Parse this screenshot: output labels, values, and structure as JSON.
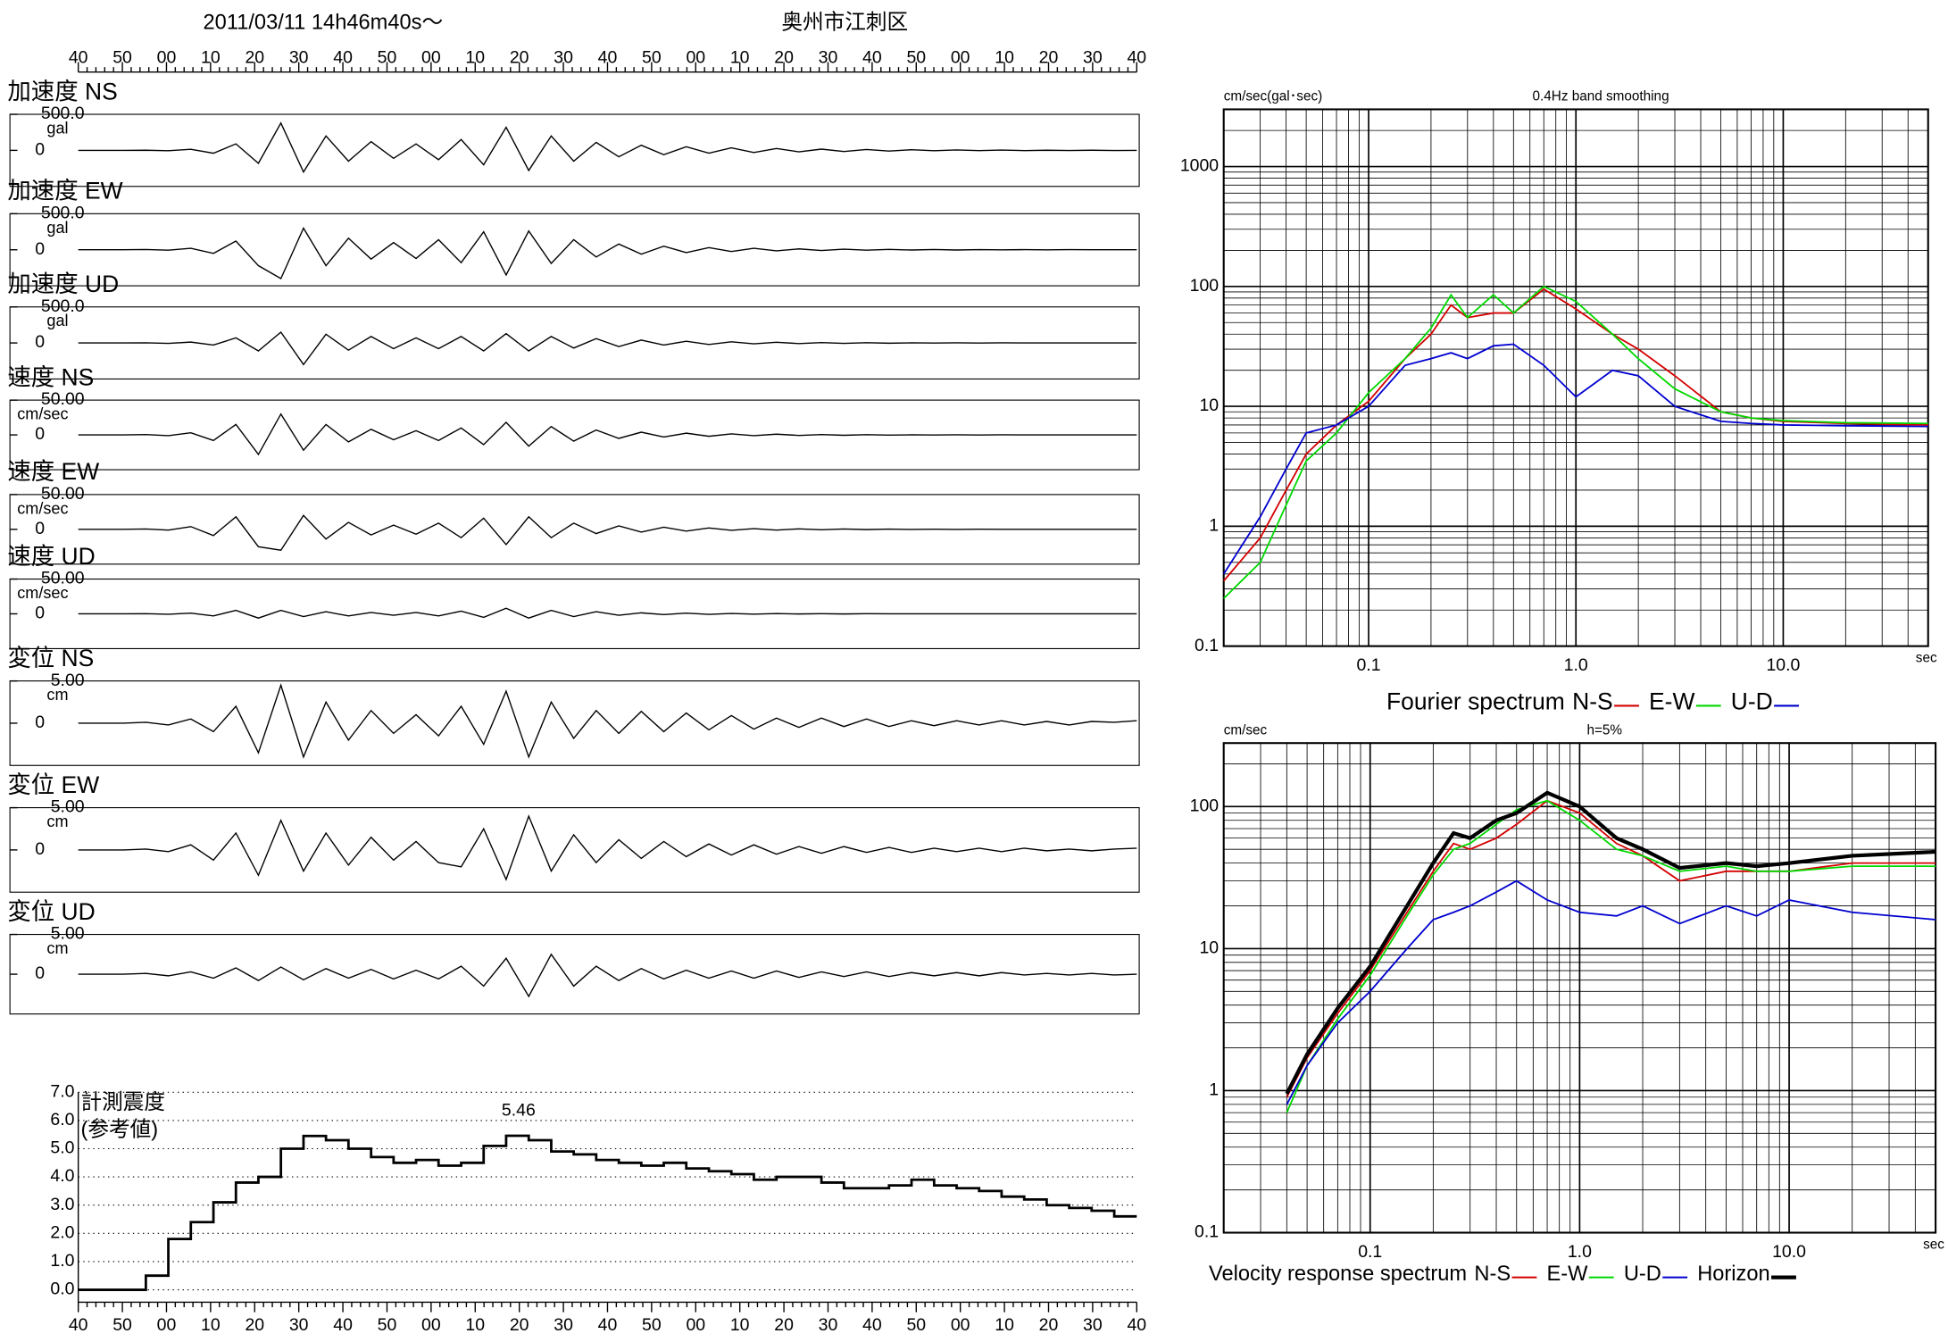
{
  "chart_data": [
    {
      "type": "waveform",
      "title": "2011/03/11  14h46m40s〜",
      "location": "奥州市江刺区",
      "time_labels": [
        "40",
        "50",
        "00",
        "10",
        "20",
        "30",
        "40",
        "50",
        "00",
        "10",
        "20",
        "30",
        "40",
        "50",
        "00",
        "10",
        "20",
        "30",
        "40",
        "50",
        "00",
        "10",
        "20",
        "30",
        "40"
      ],
      "panels": [
        {
          "label": "加速度 NS",
          "unit": "gal",
          "ylim": [
            -500,
            500
          ],
          "yticks": [
            {
              "value": 500,
              "label": "500.0"
            },
            0
          ],
          "values": [
            0,
            0,
            0,
            2,
            -5,
            15,
            -40,
            90,
            -180,
            380,
            -300,
            200,
            -150,
            120,
            -110,
            90,
            -130,
            150,
            -200,
            320,
            -280,
            200,
            -150,
            110,
            -90,
            70,
            -60,
            50,
            -40,
            35,
            -30,
            25,
            -20,
            18,
            -15,
            12,
            -10,
            8,
            -6,
            5,
            -4,
            3,
            -3,
            2,
            -2,
            1,
            -1,
            0
          ]
        },
        {
          "label": "加速度 EW",
          "unit": "gal",
          "ylim": [
            -500,
            500
          ],
          "yticks": [
            {
              "value": 500,
              "label": "500.0"
            },
            0
          ],
          "values": [
            0,
            0,
            0,
            3,
            -6,
            20,
            -50,
            120,
            -220,
            -400,
            300,
            -220,
            160,
            -130,
            100,
            -120,
            140,
            -180,
            250,
            -350,
            260,
            -190,
            140,
            -100,
            80,
            -60,
            50,
            -40,
            30,
            -25,
            20,
            -15,
            12,
            -10,
            8,
            -6,
            5,
            -4,
            3,
            -3,
            2,
            -2,
            1,
            -1,
            1,
            0,
            0,
            0
          ]
        },
        {
          "label": "加速度 UD",
          "unit": "gal",
          "ylim": [
            -500,
            500
          ],
          "yticks": [
            {
              "value": 500,
              "label": "500.0"
            },
            0
          ],
          "values": [
            0,
            0,
            0,
            2,
            -5,
            12,
            -30,
            70,
            -110,
            150,
            -300,
            120,
            -100,
            90,
            -80,
            70,
            -80,
            90,
            -110,
            130,
            -110,
            90,
            -70,
            60,
            -50,
            40,
            -30,
            25,
            -20,
            15,
            -12,
            10,
            -8,
            6,
            -5,
            4,
            -3,
            2,
            -2,
            1,
            -1,
            1,
            0,
            0,
            0,
            0,
            0,
            0
          ]
        },
        {
          "label": "速度 NS",
          "unit": "cm/sec",
          "ylim": [
            -50,
            50
          ],
          "yticks": [
            {
              "value": 50,
              "label": "50.00"
            },
            0
          ],
          "values": [
            0,
            0,
            0,
            0.5,
            -1,
            3,
            -8,
            15,
            -28,
            30,
            -22,
            15,
            -10,
            8,
            -7,
            6,
            -8,
            10,
            -14,
            18,
            -16,
            12,
            -9,
            7,
            -5,
            4,
            -3,
            2.5,
            -2,
            1.5,
            -1,
            1,
            -0.8,
            0.6,
            -0.5,
            0.4,
            -0.3,
            0.2,
            -0.2,
            0.1,
            -0.1,
            0.1,
            0,
            0,
            0,
            0,
            0,
            0
          ]
        },
        {
          "label": "速度 EW",
          "unit": "cm/sec",
          "ylim": [
            -50,
            50
          ],
          "yticks": [
            {
              "value": 50,
              "label": "50.00"
            },
            0
          ],
          "values": [
            0,
            0,
            0,
            0.5,
            -1,
            4,
            -9,
            18,
            -25,
            -30,
            20,
            -14,
            10,
            -8,
            6,
            -7,
            9,
            -12,
            16,
            -22,
            18,
            -12,
            9,
            -6,
            5,
            -4,
            3,
            -2.5,
            2,
            -1.5,
            1,
            -1,
            0.8,
            -0.6,
            0.5,
            -0.4,
            0.3,
            -0.2,
            0.2,
            -0.1,
            0.1,
            0,
            0,
            0,
            0,
            0,
            0,
            0
          ]
        },
        {
          "label": "速度 UD",
          "unit": "cm/sec",
          "ylim": [
            -50,
            50
          ],
          "yticks": [
            {
              "value": 50,
              "label": "50.00"
            },
            0
          ],
          "values": [
            0,
            0,
            0,
            0.2,
            -0.5,
            1,
            -3,
            5,
            -6,
            5,
            -4,
            3,
            -3,
            2,
            -2,
            2,
            -3,
            4,
            -5,
            8,
            -6,
            5,
            -4,
            3,
            -2,
            1.5,
            -1,
            1,
            -0.8,
            0.5,
            -0.4,
            0.3,
            -0.2,
            0.2,
            -0.1,
            0.1,
            0,
            0,
            0,
            0,
            0,
            0,
            0,
            0,
            0,
            0,
            0,
            0
          ]
        },
        {
          "label": "変位 NS",
          "unit": "cm",
          "ylim": [
            -5,
            5
          ],
          "yticks": [
            {
              "value": 5,
              "label": "5.00"
            },
            0
          ],
          "values": [
            0,
            0,
            0,
            0.1,
            -0.2,
            0.5,
            -1,
            2,
            -3.5,
            4.5,
            -4,
            2.5,
            -2,
            1.5,
            -1.2,
            1,
            -1.5,
            2,
            -2.5,
            3.8,
            -4,
            2.5,
            -1.8,
            1.5,
            -1.2,
            1.4,
            -1,
            1.2,
            -0.8,
            0.9,
            -0.7,
            0.6,
            -0.5,
            0.6,
            -0.4,
            0.5,
            -0.4,
            0.3,
            -0.3,
            0.3,
            -0.2,
            0.3,
            -0.2,
            0.2,
            -0.2,
            0.2,
            0.1,
            0.3
          ]
        },
        {
          "label": "変位 EW",
          "unit": "cm",
          "ylim": [
            -5,
            5
          ],
          "yticks": [
            {
              "value": 5,
              "label": "5.00"
            },
            0
          ],
          "values": [
            0,
            0,
            0,
            0.1,
            -0.2,
            0.6,
            -1.2,
            2,
            -3,
            3.5,
            -2.5,
            2,
            -1.8,
            1.5,
            -1.2,
            1,
            -1.5,
            -2,
            2.5,
            -3.5,
            4,
            -2.5,
            1.8,
            -1.5,
            1.2,
            -1,
            1,
            -0.8,
            0.7,
            -0.6,
            0.6,
            -0.5,
            0.4,
            -0.4,
            0.4,
            -0.3,
            0.3,
            -0.3,
            0.2,
            -0.2,
            0.2,
            -0.2,
            0.2,
            -0.1,
            0.1,
            -0.1,
            0.1,
            0.2
          ]
        },
        {
          "label": "変位 UD",
          "unit": "cm",
          "ylim": [
            -5,
            5
          ],
          "yticks": [
            {
              "value": 5,
              "label": "5.00"
            },
            0
          ],
          "values": [
            0,
            0,
            0,
            0.1,
            -0.2,
            0.3,
            -0.5,
            0.8,
            -0.8,
            0.9,
            -0.7,
            0.7,
            -0.5,
            0.6,
            -0.6,
            0.5,
            -0.6,
            1,
            -1.5,
            2,
            -2.8,
            2.5,
            -1.5,
            1,
            -0.8,
            0.7,
            -0.6,
            0.5,
            -0.5,
            0.4,
            -0.5,
            0.4,
            -0.4,
            0.3,
            -0.3,
            0.3,
            -0.3,
            0.2,
            -0.2,
            0.2,
            -0.2,
            0.2,
            -0.1,
            0.1,
            -0.1,
            0.1,
            -0.1,
            0
          ]
        }
      ]
    },
    {
      "type": "step",
      "y_label": [
        "計測震度",
        "(参考値)"
      ],
      "annotation": "5.46",
      "color": "#000000",
      "time_labels": [
        "40",
        "50",
        "00",
        "10",
        "20",
        "30",
        "40",
        "50",
        "00",
        "10",
        "20",
        "30",
        "40",
        "50",
        "00",
        "10",
        "20",
        "30",
        "40",
        "50",
        "00",
        "10",
        "20",
        "30",
        "40"
      ],
      "ylim": [
        0,
        7
      ],
      "yticks": [
        {
          "value": 0,
          "label": "0.0"
        },
        {
          "value": 1,
          "label": "1.0"
        },
        {
          "value": 2,
          "label": "2.0"
        },
        {
          "value": 3,
          "label": "3.0"
        },
        {
          "value": 4,
          "label": "4.0"
        },
        {
          "value": 5,
          "label": "5.0"
        },
        {
          "value": 6,
          "label": "6.0"
        },
        {
          "value": 7,
          "label": "7.0"
        }
      ],
      "grid": true,
      "values": [
        0,
        0,
        0,
        0.5,
        1.8,
        2.4,
        3.1,
        3.8,
        4.0,
        5.0,
        5.45,
        5.3,
        5.0,
        4.7,
        4.5,
        4.6,
        4.4,
        4.5,
        5.1,
        5.46,
        5.3,
        4.9,
        4.8,
        4.6,
        4.5,
        4.4,
        4.5,
        4.3,
        4.2,
        4.1,
        3.9,
        4.0,
        4.0,
        3.8,
        3.6,
        3.6,
        3.7,
        3.9,
        3.7,
        3.6,
        3.5,
        3.3,
        3.2,
        3.0,
        2.9,
        2.8,
        2.6,
        2.6
      ]
    },
    {
      "type": "loglog",
      "title": "Fourier spectrum",
      "y_label": "cm/sec(gal･sec)",
      "subtitle": "0.4Hz band smoothing",
      "x_unit": "sec",
      "xlim": [
        0.02,
        50
      ],
      "ylim": [
        0.1,
        3000
      ],
      "xticks": [
        0.1,
        {
          "value": 1,
          "label": "1.0"
        },
        {
          "value": 10,
          "label": "10.0"
        }
      ],
      "yticks": [
        0.1,
        1,
        10,
        100,
        1000
      ],
      "grid": true,
      "x": [
        0.02,
        0.03,
        0.04,
        0.05,
        0.07,
        0.1,
        0.15,
        0.2,
        0.25,
        0.3,
        0.4,
        0.5,
        0.7,
        1.0,
        1.5,
        2,
        3,
        5,
        7,
        10,
        20,
        50
      ],
      "series": [
        {
          "name": "N-S",
          "color": "#d40000",
          "values": [
            0.35,
            0.8,
            2,
            4,
            7,
            11,
            25,
            40,
            70,
            55,
            60,
            60,
            95,
            65,
            40,
            30,
            18,
            9,
            8,
            7.5,
            7.2,
            7.0
          ]
        },
        {
          "name": "E-W",
          "color": "#00d800",
          "values": [
            0.25,
            0.5,
            1.5,
            3.5,
            6,
            13,
            25,
            45,
            85,
            55,
            85,
            60,
            100,
            75,
            40,
            25,
            14,
            9,
            8,
            7.6,
            7.3,
            7.2
          ]
        },
        {
          "name": "U-D",
          "color": "#0000d0",
          "values": [
            0.4,
            1.2,
            3,
            6,
            7,
            10,
            22,
            25,
            28,
            25,
            32,
            33,
            22,
            12,
            20,
            18,
            10,
            7.5,
            7.2,
            7,
            6.9,
            6.8
          ]
        }
      ]
    },
    {
      "type": "loglog",
      "title": "Velocity response spectrum",
      "y_label": "cm/sec",
      "subtitle": "h=5%",
      "x_unit": "sec",
      "xlim": [
        0.02,
        50
      ],
      "ylim": [
        0.1,
        280
      ],
      "xticks": [
        0.1,
        {
          "value": 1,
          "label": "1.0"
        },
        {
          "value": 10,
          "label": "10.0"
        }
      ],
      "yticks": [
        0.1,
        1,
        10,
        100
      ],
      "grid": true,
      "x": [
        0.04,
        0.05,
        0.07,
        0.1,
        0.15,
        0.2,
        0.25,
        0.3,
        0.4,
        0.5,
        0.7,
        1.0,
        1.5,
        2,
        3,
        5,
        7,
        10,
        20,
        50
      ],
      "series": [
        {
          "name": "N-S",
          "color": "#d40000",
          "values": [
            0.9,
            1.7,
            3.5,
            7,
            18,
            35,
            55,
            50,
            60,
            75,
            110,
            90,
            55,
            45,
            30,
            35,
            35,
            35,
            40,
            40
          ]
        },
        {
          "name": "E-W",
          "color": "#00d800",
          "values": [
            0.7,
            1.5,
            3.2,
            6.5,
            17,
            33,
            50,
            55,
            75,
            95,
            110,
            80,
            50,
            45,
            35,
            38,
            35,
            35,
            38,
            38
          ]
        },
        {
          "name": "U-D",
          "color": "#0000d0",
          "values": [
            0.8,
            1.5,
            3,
            5,
            10,
            16,
            18,
            20,
            25,
            30,
            22,
            18,
            17,
            20,
            15,
            20,
            17,
            22,
            18,
            16
          ]
        },
        {
          "name": "Horizon",
          "color": "#000000",
          "width": 3,
          "values": [
            0.95,
            1.8,
            3.8,
            7.5,
            20,
            40,
            65,
            60,
            80,
            90,
            125,
            100,
            60,
            50,
            37,
            40,
            38,
            40,
            45,
            48
          ]
        }
      ]
    }
  ]
}
